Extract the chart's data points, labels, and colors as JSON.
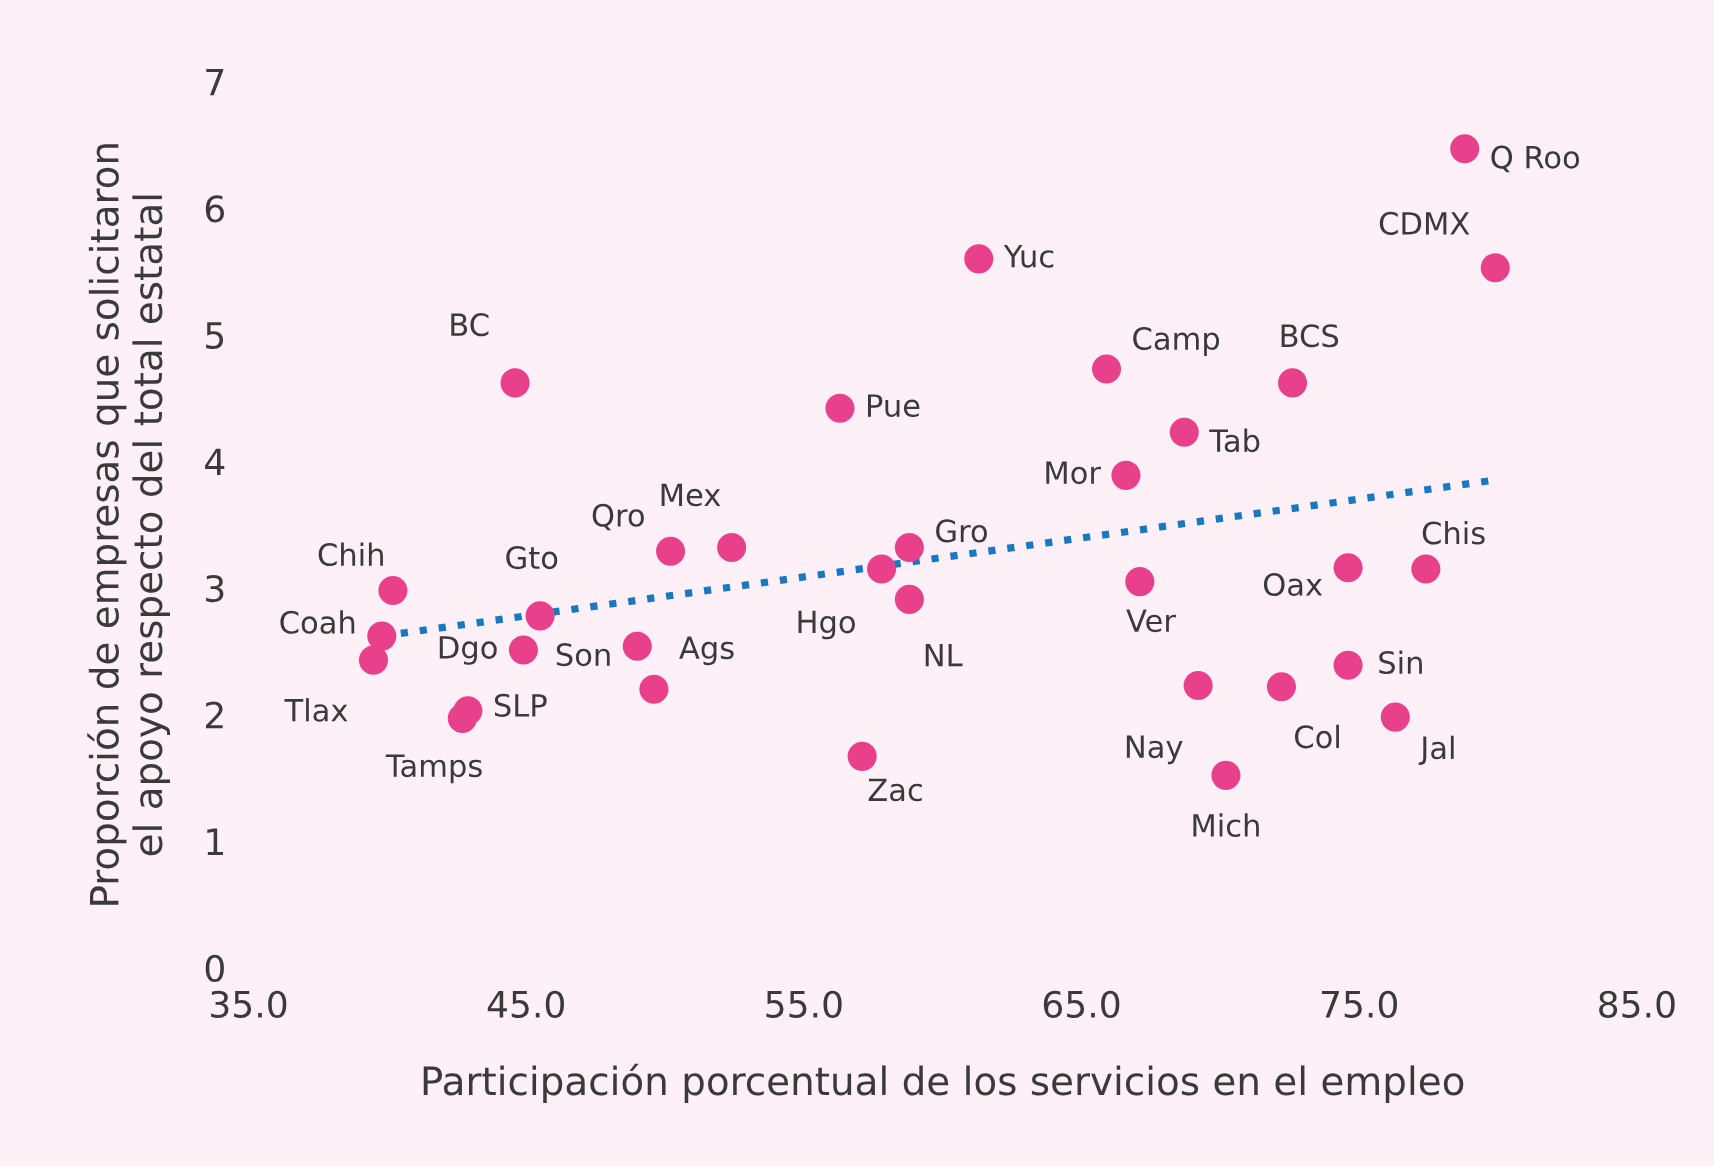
{
  "chart_data": {
    "type": "scatter",
    "xlabel": "Participación porcentual de los servicios en el empleo",
    "ylabel": "Proporción de empresas que solicitaron\nel apoyo respecto del total estatal",
    "xlim": [
      35,
      85
    ],
    "ylim": [
      0,
      7
    ],
    "xticks": [
      {
        "value": 35,
        "label": "35.0"
      },
      {
        "value": 45,
        "label": "45.0"
      },
      {
        "value": 55,
        "label": "55.0"
      },
      {
        "value": 65,
        "label": "65.0"
      },
      {
        "value": 75,
        "label": "75.0"
      },
      {
        "value": 85,
        "label": "85.0"
      }
    ],
    "yticks": [
      0,
      1,
      2,
      3,
      4,
      5,
      6,
      7
    ],
    "grid": false,
    "legend": false,
    "series": [
      {
        "marker": "circle",
        "color": "#e8408a",
        "x": [
          78.8,
          79.9,
          61.3,
          44.6,
          65.9,
          72.6,
          56.3,
          68.7,
          66.6,
          52.4,
          50.2,
          58.8,
          57.8,
          58.8,
          40.2,
          45.5,
          39.8,
          44.9,
          49.0,
          49.6,
          39.5,
          42.9,
          42.7,
          57.1,
          67.1,
          74.6,
          77.4,
          69.2,
          72.2,
          74.6,
          76.3,
          70.2
        ],
        "values": [
          6.47,
          5.53,
          5.6,
          4.62,
          4.73,
          4.62,
          4.42,
          4.23,
          3.89,
          3.32,
          3.29,
          3.32,
          3.15,
          2.91,
          2.98,
          2.78,
          2.62,
          2.51,
          2.54,
          2.2,
          2.43,
          2.03,
          1.97,
          1.67,
          3.05,
          3.16,
          3.15,
          2.23,
          2.22,
          2.39,
          1.98,
          1.52
        ],
        "value_labels": [
          "Q Roo",
          "CDMX",
          "Yuc",
          "BC",
          "Camp",
          "BCS",
          "Pue",
          "Tab",
          "Mor",
          "Mex",
          "Qro",
          "Gro",
          "Hgo",
          "NL",
          "Chih",
          "Gto",
          "Coah",
          "Dgo",
          "Son",
          "Ags",
          "Tlax",
          "SLP",
          "Tamps",
          "Zac",
          "Ver",
          "Oax",
          "Chis",
          "Nay",
          "Col",
          "Sin",
          "Jal",
          "Mich"
        ]
      },
      {
        "type": "line",
        "color": "#1a78c2",
        "line_style": "dotted",
        "x": [
          39.8,
          79.8
        ],
        "values": [
          2.62,
          3.85
        ]
      }
    ]
  }
}
